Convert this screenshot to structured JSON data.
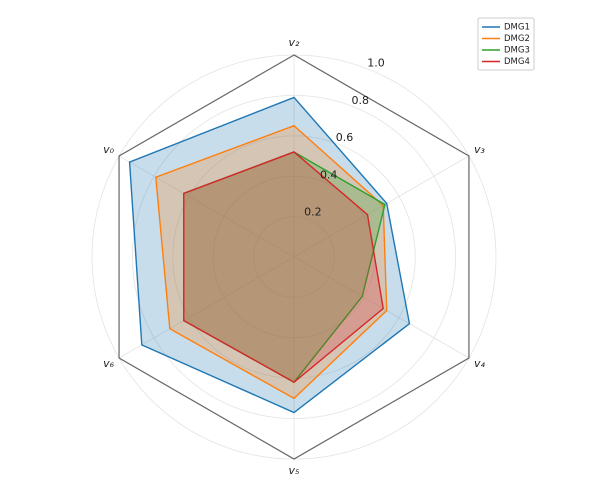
{
  "chart_data": {
    "type": "radar",
    "categories": [
      "v₂",
      "v₀",
      "v₆",
      "v₅",
      "v₄",
      "v₃"
    ],
    "ylim": [
      0,
      1.0
    ],
    "yticks": [
      0.2,
      0.4,
      0.6,
      0.8,
      {
        "value": 1.0,
        "label": "1.0"
      }
    ],
    "grid": true,
    "legend": "upper right",
    "series": [
      {
        "name": "DMG1",
        "color": "#1f77b4",
        "values": [
          0.79,
          0.94,
          0.87,
          0.77,
          0.66,
          0.53
        ]
      },
      {
        "name": "DMG2",
        "color": "#ff7f0e",
        "values": [
          0.65,
          0.79,
          0.71,
          0.7,
          0.53,
          0.51
        ]
      },
      {
        "name": "DMG3",
        "color": "#2ca02c",
        "values": [
          0.52,
          0.63,
          0.63,
          0.62,
          0.39,
          0.52
        ]
      },
      {
        "name": "DMG4",
        "color": "#d62728",
        "values": [
          0.52,
          0.63,
          0.63,
          0.62,
          0.51,
          0.42
        ]
      }
    ]
  }
}
